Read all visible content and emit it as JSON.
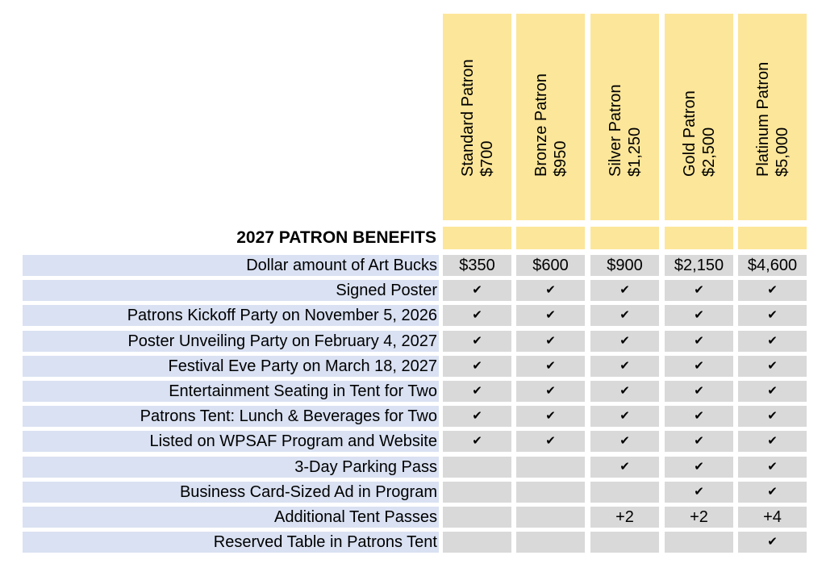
{
  "title": "2027 PATRON BENEFITS",
  "tiers": [
    {
      "name": "Standard Patron",
      "price": "$700"
    },
    {
      "name": "Bronze Patron",
      "price": "$950"
    },
    {
      "name": "Silver Patron",
      "price": "$1,250"
    },
    {
      "name": "Gold Patron",
      "price": "$2,500"
    },
    {
      "name": "Platinum Patron",
      "price": "$5,000"
    }
  ],
  "rows": [
    {
      "label": "Dollar amount of Art Bucks",
      "values": [
        "$350",
        "$600",
        "$900",
        "$2,150",
        "$4,600"
      ]
    },
    {
      "label": "Signed Poster",
      "values": [
        "✔",
        "✔",
        "✔",
        "✔",
        "✔"
      ]
    },
    {
      "label": "Patrons Kickoff Party on November 5, 2026",
      "values": [
        "✔",
        "✔",
        "✔",
        "✔",
        "✔"
      ]
    },
    {
      "label": "Poster Unveiling Party on February 4, 2027",
      "values": [
        "✔",
        "✔",
        "✔",
        "✔",
        "✔"
      ]
    },
    {
      "label": "Festival Eve Party on March 18, 2027",
      "values": [
        "✔",
        "✔",
        "✔",
        "✔",
        "✔"
      ]
    },
    {
      "label": "Entertainment Seating in Tent for Two",
      "values": [
        "✔",
        "✔",
        "✔",
        "✔",
        "✔"
      ]
    },
    {
      "label": "Patrons Tent:  Lunch & Beverages for Two",
      "values": [
        "✔",
        "✔",
        "✔",
        "✔",
        "✔"
      ]
    },
    {
      "label": "Listed on WPSAF Program and Website",
      "values": [
        "✔",
        "✔",
        "✔",
        "✔",
        "✔"
      ]
    },
    {
      "label": "3-Day Parking Pass",
      "values": [
        "",
        "",
        "✔",
        "✔",
        "✔"
      ]
    },
    {
      "label": "Business Card-Sized Ad in Program",
      "values": [
        "",
        "",
        "",
        "✔",
        "✔"
      ]
    },
    {
      "label": "Additional Tent Passes",
      "values": [
        "",
        "",
        "+2",
        "+2",
        "+4"
      ]
    },
    {
      "label": "Reserved Table in Patrons Tent",
      "values": [
        "",
        "",
        "",
        "",
        "✔"
      ]
    }
  ],
  "colors": {
    "header": "#fce699",
    "label_bg": "#d9e1f2",
    "cell_bg": "#d9d9d9"
  }
}
